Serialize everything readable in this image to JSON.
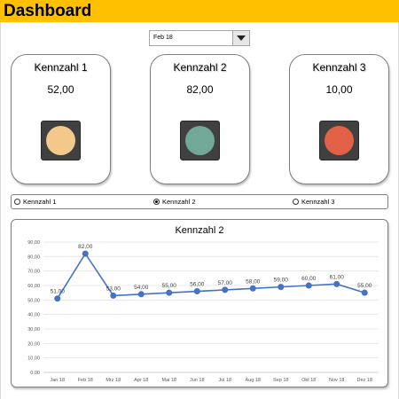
{
  "header": {
    "title": "Dashboard",
    "color": "#ffc000"
  },
  "filter": {
    "selected": "Feb 18"
  },
  "kpis": [
    {
      "title": "Kennzahl 1",
      "value": "52,00",
      "light_color": "#f2c98a"
    },
    {
      "title": "Kennzahl 2",
      "value": "82,00",
      "light_color": "#72a898"
    },
    {
      "title": "Kennzahl 3",
      "value": "10,00",
      "light_color": "#e06146"
    }
  ],
  "radio": {
    "options": [
      "Kennzahl 1",
      "Kennzahl 2",
      "Kennzahl 3"
    ],
    "selected_index": 1
  },
  "chart_data": {
    "type": "line",
    "title": "Kennzahl 2",
    "categories": [
      "Jan 18",
      "Feb 18",
      "Mrz 18",
      "Apr 18",
      "Mai 18",
      "Jun 18",
      "Jul 18",
      "Aug 18",
      "Sep 18",
      "Okt 18",
      "Nov 18",
      "Dez 18"
    ],
    "values": [
      51,
      82,
      53,
      54,
      55,
      56,
      57,
      58,
      59,
      60,
      61,
      55
    ],
    "value_labels": [
      "51,00",
      "82,00",
      "53,00",
      "54,00",
      "55,00",
      "56,00",
      "57,00",
      "58,00",
      "59,00",
      "60,00",
      "61,00",
      "55,00"
    ],
    "y_ticks": [
      "0,00",
      "10,00",
      "20,00",
      "30,00",
      "40,00",
      "50,00",
      "60,00",
      "70,00",
      "80,00",
      "90,00"
    ],
    "ylim": [
      0,
      90
    ],
    "grid": true,
    "line_color": "#4472c4"
  }
}
